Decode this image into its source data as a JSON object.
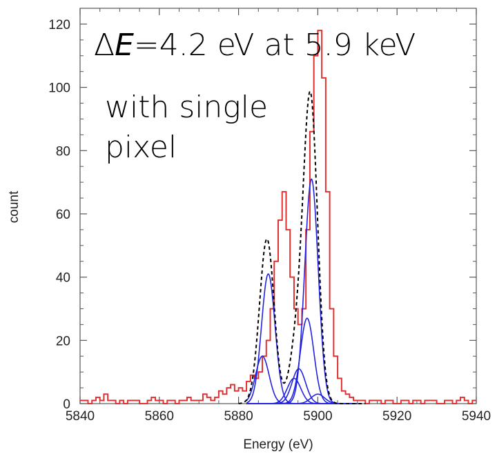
{
  "chart_data": {
    "type": "line",
    "xlabel": "Energy (eV)",
    "ylabel": "count",
    "xlim": [
      5840,
      5940
    ],
    "ylim": [
      0,
      125
    ],
    "x_ticks": [
      5840,
      5860,
      5880,
      5900,
      5920,
      5940
    ],
    "x_tick_labels": [
      "5840",
      "5860",
      "5880",
      "5900",
      "5920",
      "5940"
    ],
    "y_ticks": [
      0,
      20,
      40,
      60,
      80,
      100,
      120
    ],
    "y_tick_labels": [
      "0",
      "20",
      "40",
      "60",
      "80",
      "100",
      "120"
    ],
    "grid": false,
    "annotations": [
      {
        "delta": "Δ",
        "var": "E",
        "rest": "=4.2 eV at 5.9 keV"
      },
      {
        "line1": "with single",
        "line2": "pixel"
      }
    ],
    "histogram": {
      "color": "#e03030",
      "bin_width": 1,
      "x_start": 5840,
      "counts": [
        1,
        1,
        0,
        1,
        2,
        1,
        3,
        1,
        1,
        0,
        1,
        0,
        1,
        1,
        1,
        0,
        0,
        1,
        2,
        1,
        1,
        0,
        1,
        1,
        0,
        1,
        1,
        2,
        1,
        1,
        1,
        3,
        2,
        1,
        2,
        4,
        3,
        5,
        6,
        4,
        5,
        4,
        7,
        9,
        8,
        10,
        15,
        20,
        30,
        45,
        58,
        67,
        55,
        40,
        30,
        25,
        30,
        55,
        86,
        110,
        118,
        103,
        67,
        30,
        15,
        8,
        4,
        3,
        2,
        1,
        1,
        1,
        0,
        1,
        1,
        1,
        0,
        1,
        1,
        0,
        0,
        1,
        1,
        0,
        1,
        1,
        0,
        1,
        1,
        1,
        0,
        0,
        1,
        1,
        0,
        1,
        2,
        1,
        0,
        1
      ]
    },
    "total_fit": {
      "color": "#000000",
      "style": "dashed",
      "x_range": [
        5880,
        5912
      ],
      "peak_values": [
        {
          "x": 5887.5,
          "y": 58
        },
        {
          "x": 5898.3,
          "y": 110
        }
      ]
    },
    "components": {
      "color": "#2020e0",
      "x_range": [
        5882,
        5910
      ],
      "peaks": [
        {
          "center": 5887.5,
          "amplitude": 41
        },
        {
          "center": 5886.0,
          "amplitude": 15
        },
        {
          "center": 5898.4,
          "amplitude": 71
        },
        {
          "center": 5897.3,
          "amplitude": 27
        },
        {
          "center": 5895.2,
          "amplitude": 11
        },
        {
          "center": 5894.0,
          "amplitude": 8
        },
        {
          "center": 5900.0,
          "amplitude": 3
        }
      ]
    }
  }
}
